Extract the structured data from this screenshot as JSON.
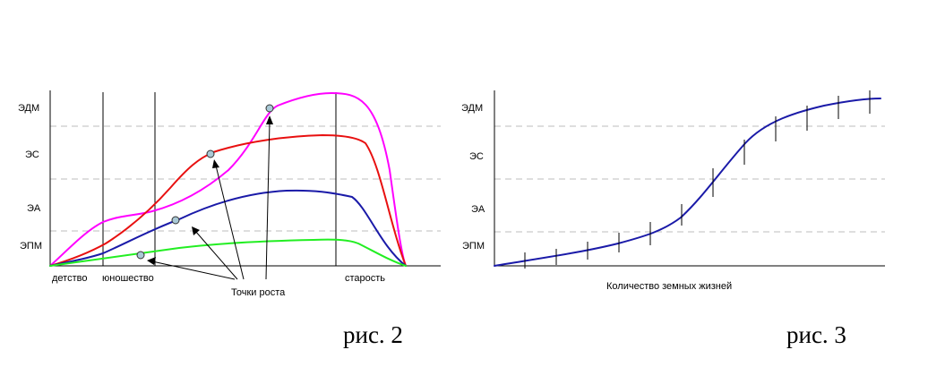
{
  "levels": [
    "ЭДМ",
    "ЭС",
    "ЭА",
    "ЭПМ"
  ],
  "figure2": {
    "caption": "рис. 2",
    "stages": [
      "детство",
      "юношество",
      "старость"
    ],
    "annotation": "Точки роста",
    "curves": [
      {
        "name": "magenta",
        "color": "#ff00ff"
      },
      {
        "name": "red",
        "color": "#e81010"
      },
      {
        "name": "blue",
        "color": "#1a1aa8"
      },
      {
        "name": "green",
        "color": "#22ee22"
      }
    ]
  },
  "figure3": {
    "caption": "рис. 3",
    "xlabel": "Количество земных жизней",
    "curve_color": "#1a1aa8"
  }
}
